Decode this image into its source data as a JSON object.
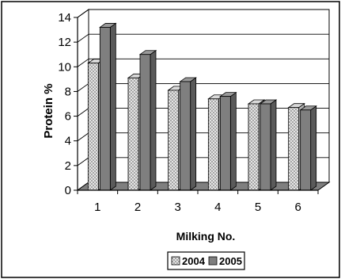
{
  "chart_data": {
    "type": "bar",
    "title": "",
    "xlabel": "Milking No.",
    "ylabel": "Protein %",
    "categories": [
      "1",
      "2",
      "3",
      "4",
      "5",
      "6"
    ],
    "y_ticks": [
      "0",
      "2",
      "4",
      "6",
      "8",
      "10",
      "12",
      "14"
    ],
    "ylim": [
      0,
      14
    ],
    "grid": true,
    "legend_position": "bottom",
    "series": [
      {
        "name": "2004",
        "values": [
          10.3,
          9.1,
          8.1,
          7.4,
          7.0,
          6.7
        ],
        "color": "#e6e6e6",
        "pattern": "crosshatch"
      },
      {
        "name": "2005",
        "values": [
          13.2,
          11.0,
          8.8,
          7.6,
          7.0,
          6.5
        ],
        "color": "#7f7f7f",
        "pattern": "solid"
      }
    ]
  }
}
